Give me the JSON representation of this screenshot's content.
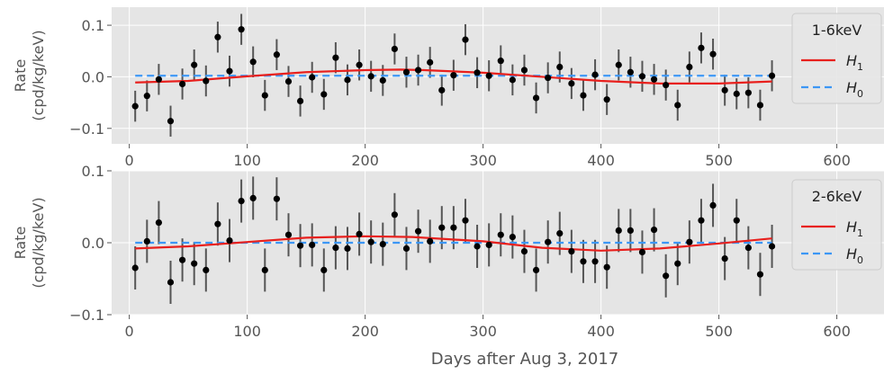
{
  "chart_data": [
    {
      "type": "scatter",
      "title": "",
      "xlabel": "",
      "ylabel": "Rate\n(cpd/kg/keV)",
      "xlim": [
        -15,
        640
      ],
      "ylim": [
        -0.13,
        0.135
      ],
      "xticks": [
        "0",
        "100",
        "200",
        "300",
        "400",
        "500",
        "600"
      ],
      "yticks": [
        "0.1",
        "0.0",
        "−0.1"
      ],
      "grid": true,
      "legend": {
        "title": "1-6keV",
        "position": "right",
        "entries": [
          "H1",
          "H0"
        ]
      },
      "series": [
        {
          "name": "data",
          "style": "errorbar",
          "x": [
            5,
            15,
            25,
            35,
            45,
            55,
            65,
            75,
            85,
            95,
            105,
            115,
            125,
            135,
            145,
            155,
            165,
            175,
            185,
            195,
            205,
            215,
            225,
            235,
            245,
            255,
            265,
            275,
            285,
            295,
            305,
            315,
            325,
            335,
            345,
            355,
            365,
            375,
            385,
            395,
            405,
            415,
            425,
            435,
            445,
            455,
            465,
            475,
            485,
            495,
            505,
            515,
            525,
            535,
            545
          ],
          "y": [
            -0.057,
            -0.037,
            -0.005,
            -0.086,
            -0.014,
            0.023,
            -0.008,
            0.077,
            0.011,
            0.092,
            0.029,
            -0.036,
            0.043,
            -0.009,
            -0.047,
            -0.001,
            -0.034,
            0.037,
            -0.006,
            0.023,
            0.001,
            -0.007,
            0.054,
            0.009,
            0.013,
            0.028,
            -0.026,
            0.003,
            0.072,
            0.008,
            0.002,
            0.031,
            -0.006,
            0.013,
            -0.041,
            -0.002,
            0.019,
            -0.013,
            -0.036,
            0.004,
            -0.044,
            0.023,
            0.009,
            0.001,
            -0.005,
            -0.016,
            -0.055,
            0.019,
            0.056,
            0.044,
            -0.026,
            -0.033,
            -0.031,
            -0.055,
            0.002
          ],
          "yerr": 0.03
        },
        {
          "name": "H1",
          "style": "line",
          "color": "#e8201d",
          "x": [
            5,
            50,
            100,
            150,
            200,
            230,
            250,
            300,
            350,
            400,
            450,
            500,
            545
          ],
          "y": [
            -0.011,
            -0.008,
            0.001,
            0.009,
            0.013,
            0.014,
            0.013,
            0.008,
            0.0,
            -0.008,
            -0.013,
            -0.013,
            -0.009
          ]
        },
        {
          "name": "H0",
          "style": "dashed-line",
          "color": "#3c97f5",
          "x": [
            5,
            545
          ],
          "y": [
            0.002,
            0.002
          ]
        }
      ]
    },
    {
      "type": "scatter",
      "title": "",
      "xlabel": "Days after Aug 3, 2017",
      "ylabel": "Rate\n(cpd/kg/keV)",
      "xlim": [
        -15,
        640
      ],
      "ylim": [
        -0.1,
        0.1
      ],
      "xticks": [
        "0",
        "100",
        "200",
        "300",
        "400",
        "500",
        "600"
      ],
      "yticks": [
        "0.1",
        "0.0",
        "−0.1"
      ],
      "grid": true,
      "legend": {
        "title": "2-6keV",
        "position": "right",
        "entries": [
          "H1",
          "H0"
        ]
      },
      "series": [
        {
          "name": "data",
          "style": "errorbar",
          "x": [
            5,
            15,
            25,
            35,
            45,
            55,
            65,
            75,
            85,
            95,
            105,
            115,
            125,
            135,
            145,
            155,
            165,
            175,
            185,
            195,
            205,
            215,
            225,
            235,
            245,
            255,
            265,
            275,
            285,
            295,
            305,
            315,
            325,
            335,
            345,
            355,
            365,
            375,
            385,
            395,
            405,
            415,
            425,
            435,
            445,
            455,
            465,
            475,
            485,
            495,
            505,
            515,
            525,
            535,
            545
          ],
          "y": [
            -0.035,
            0.002,
            0.028,
            -0.055,
            -0.024,
            -0.029,
            -0.038,
            0.026,
            0.003,
            0.058,
            0.062,
            -0.038,
            0.061,
            0.011,
            -0.004,
            -0.003,
            -0.038,
            -0.007,
            -0.008,
            0.012,
            0.001,
            -0.002,
            0.039,
            -0.008,
            0.016,
            0.002,
            0.021,
            0.021,
            0.031,
            -0.005,
            -0.003,
            0.011,
            0.008,
            -0.012,
            -0.038,
            0.001,
            0.013,
            -0.012,
            -0.026,
            -0.026,
            -0.034,
            0.017,
            0.017,
            -0.013,
            0.018,
            -0.046,
            -0.029,
            0.001,
            0.031,
            0.052,
            -0.022,
            0.031,
            -0.007,
            -0.044,
            -0.005
          ],
          "yerr": 0.03
        },
        {
          "name": "H1",
          "style": "line",
          "color": "#e8201d",
          "x": [
            5,
            50,
            100,
            150,
            200,
            240,
            300,
            350,
            400,
            450,
            500,
            545
          ],
          "y": [
            -0.008,
            -0.005,
            0.001,
            0.007,
            0.009,
            0.008,
            0.002,
            -0.007,
            -0.011,
            -0.008,
            -0.001,
            0.006
          ]
        },
        {
          "name": "H0",
          "style": "dashed-line",
          "color": "#3c97f5",
          "x": [
            5,
            545
          ],
          "y": [
            0.0,
            0.0
          ]
        }
      ]
    }
  ],
  "legend_labels": {
    "h1": "H",
    "h1_sub": "1",
    "h0": "H",
    "h0_sub": "0"
  },
  "colors": {
    "panel_bg": "#e5e5e5",
    "grid": "#ffffff",
    "axis_text": "#555555",
    "points": "#000000",
    "errorbars": "#555555"
  }
}
